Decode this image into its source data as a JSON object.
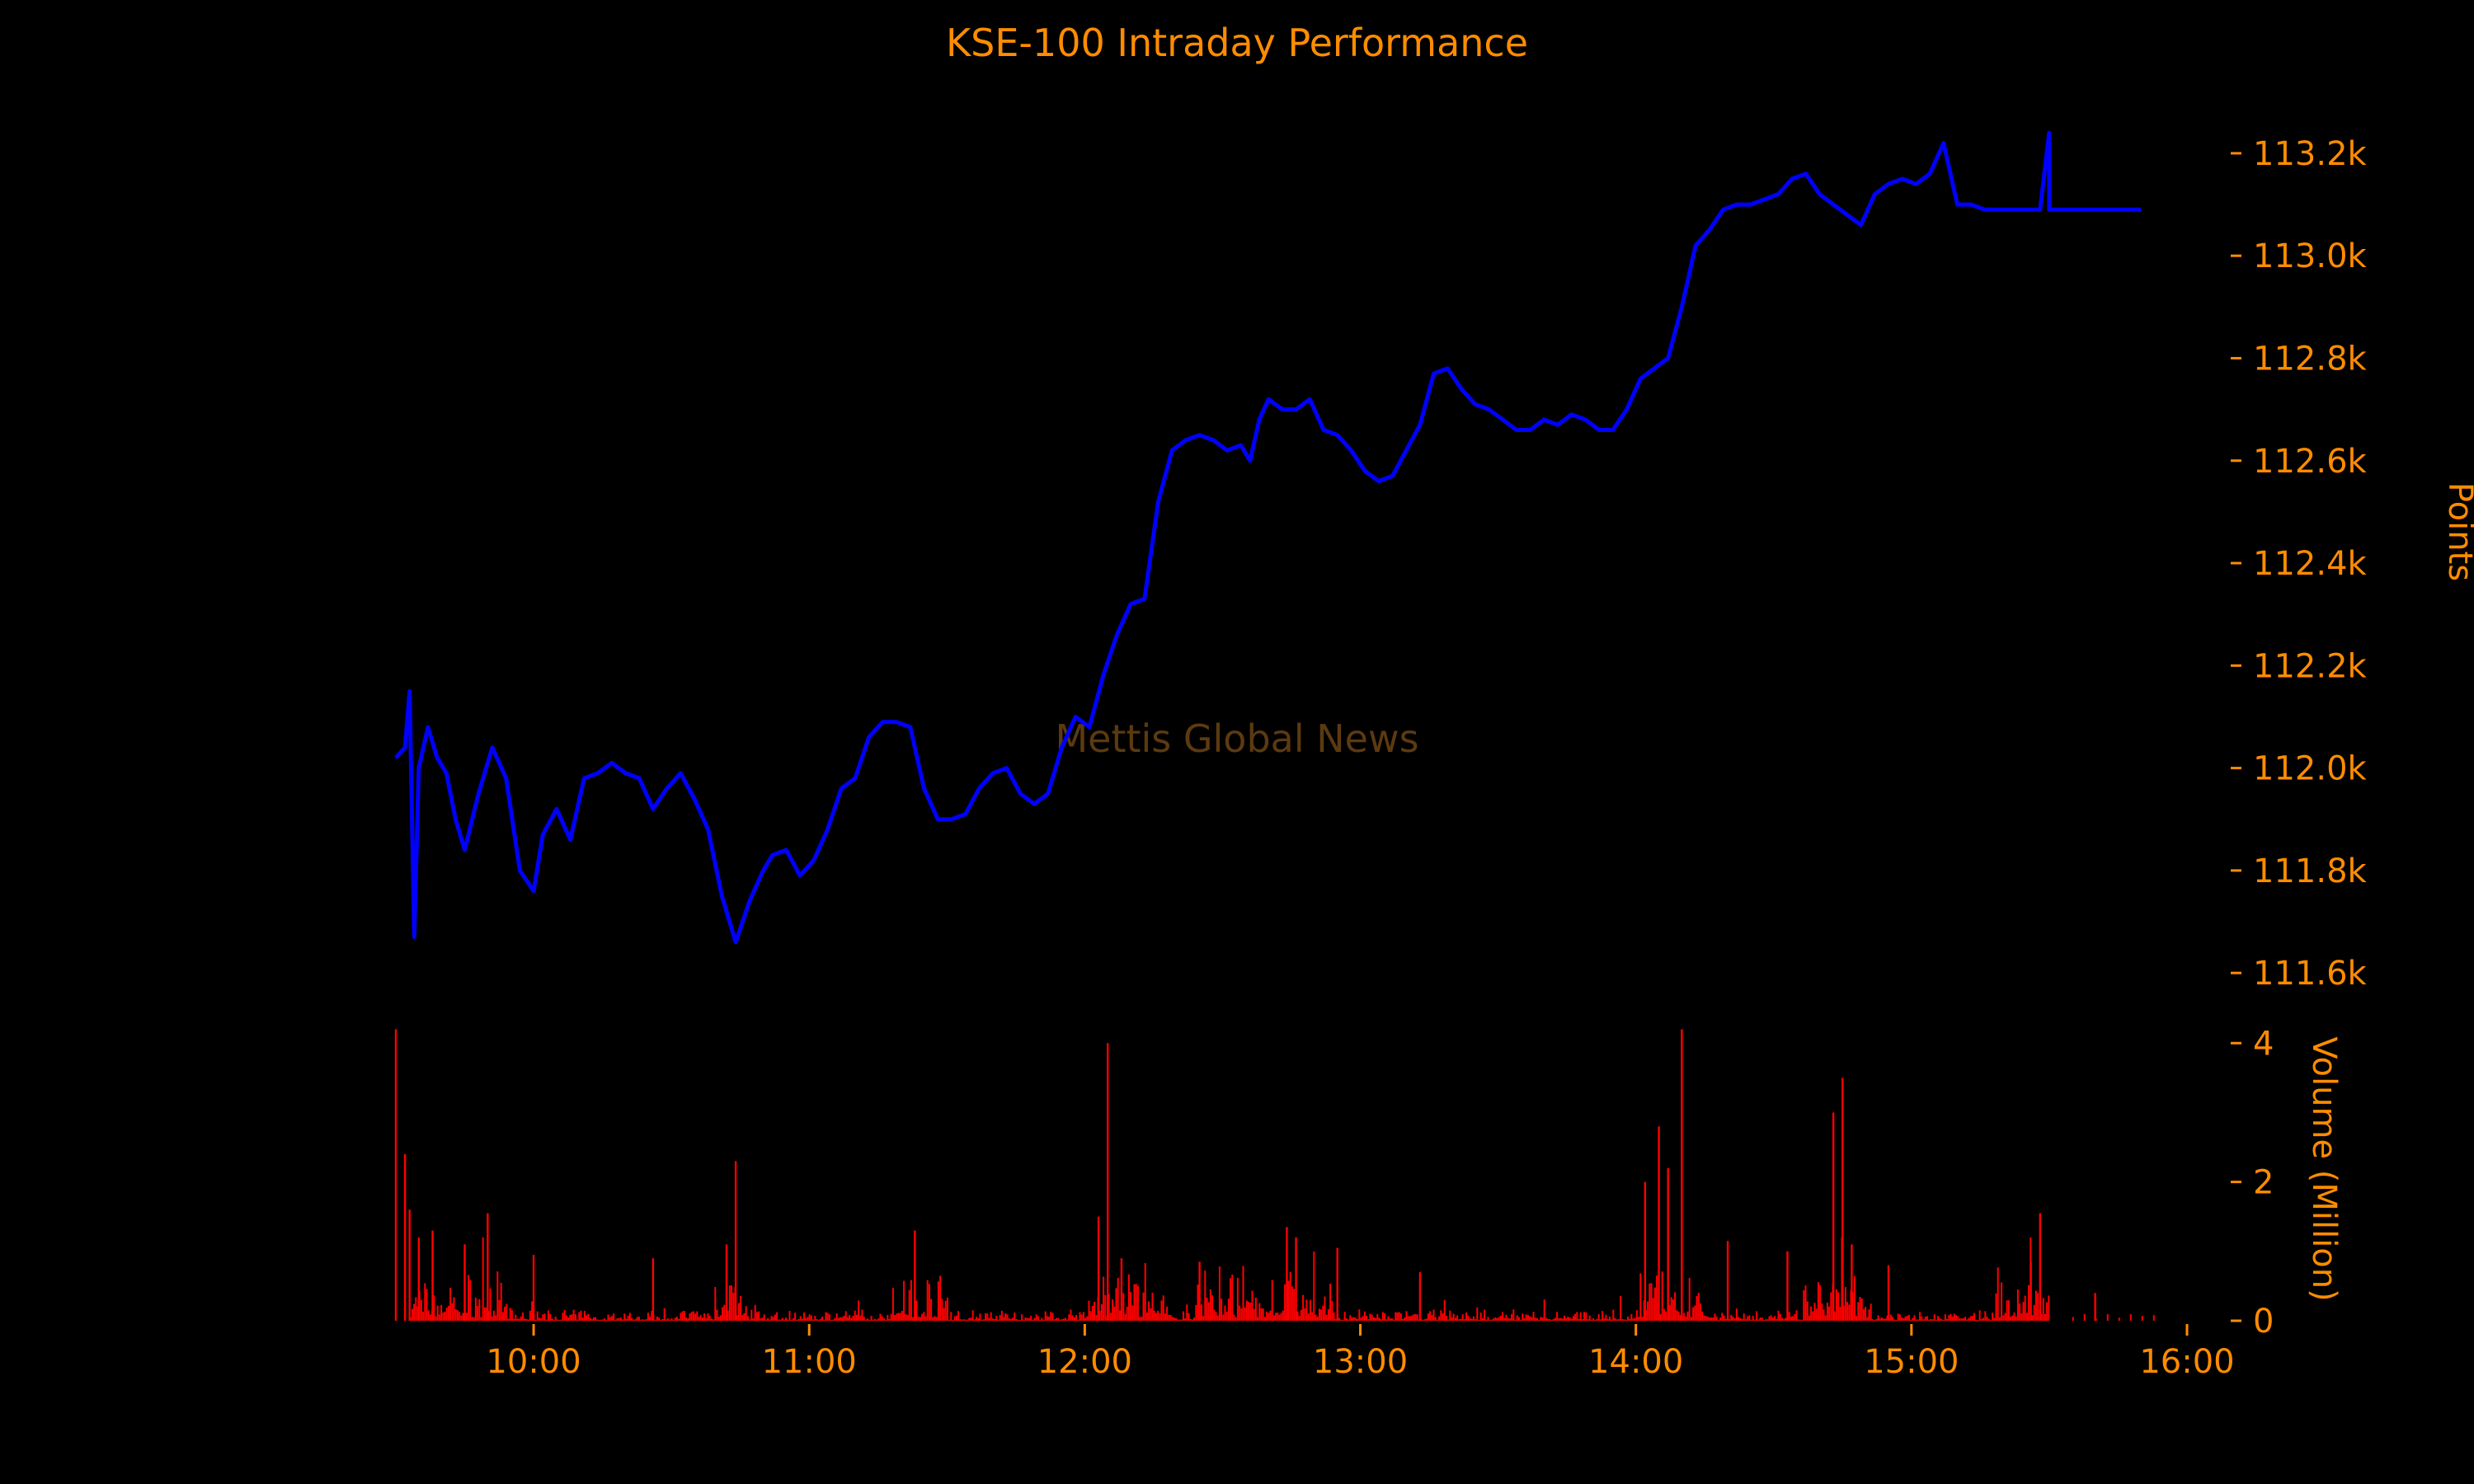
{
  "chart_data": {
    "title": "KSE-100 Intraday Performance",
    "watermark": "Mettis Global News",
    "colors": {
      "background": "#000000",
      "text": "#ff8c00",
      "price_line": "#0000ff",
      "volume_bars": "#ff0000",
      "watermark": "#5c3a10"
    },
    "price_panel": {
      "type": "line",
      "ylabel": "Points",
      "ylim": [
        111560,
        113290
      ],
      "yticks": [
        111600,
        111800,
        112000,
        112200,
        112400,
        112600,
        112800,
        113000,
        113200
      ],
      "ytick_labels": [
        "111.6k",
        "111.8k",
        "112.0k",
        "112.2k",
        "112.4k",
        "112.6k",
        "112.8k",
        "113.0k",
        "113.2k"
      ],
      "series": [
        {
          "x": [
            "09:30",
            "09:32",
            "09:33",
            "09:34",
            "09:35",
            "09:37",
            "09:39",
            "09:41",
            "09:43",
            "09:45",
            "09:48",
            "09:51",
            "09:54",
            "09:57",
            "10:00",
            "10:02",
            "10:05",
            "10:08",
            "10:11",
            "10:14",
            "10:17",
            "10:20",
            "10:23",
            "10:26",
            "10:29",
            "10:32",
            "10:35",
            "10:38",
            "10:41",
            "10:44",
            "10:47",
            "10:50",
            "10:52",
            "10:55",
            "10:58",
            "11:01",
            "11:04",
            "11:07",
            "11:10",
            "11:13",
            "11:16",
            "11:19",
            "11:22",
            "11:25",
            "11:28",
            "11:31",
            "11:34",
            "11:37",
            "11:40",
            "11:43",
            "11:46",
            "11:49",
            "11:52",
            "11:55",
            "11:58",
            "12:01",
            "12:04",
            "12:07",
            "12:10",
            "12:13",
            "12:16",
            "12:19",
            "12:22",
            "12:25",
            "12:28",
            "12:31",
            "12:34",
            "12:36",
            "12:37",
            "12:38",
            "12:40",
            "12:43",
            "12:46",
            "12:49",
            "12:52",
            "12:55",
            "12:58",
            "13:01",
            "13:04",
            "13:07",
            "13:10",
            "13:13",
            "13:16",
            "13:19",
            "13:22",
            "13:25",
            "13:28",
            "13:31",
            "13:34",
            "13:37",
            "13:40",
            "13:43",
            "13:46",
            "13:49",
            "13:52",
            "13:55",
            "13:58",
            "14:01",
            "14:04",
            "14:07",
            "14:10",
            "14:13",
            "14:16",
            "14:19",
            "14:22",
            "14:25",
            "14:28",
            "14:31",
            "14:34",
            "14:37",
            "14:40",
            "14:43",
            "14:46",
            "14:49",
            "14:52",
            "14:55",
            "14:58",
            "15:01",
            "15:04",
            "15:07",
            "15:10",
            "15:13",
            "15:16",
            "15:19",
            "15:22",
            "15:25",
            "15:28",
            "15:30",
            "15:30",
            "15:50"
          ],
          "y": [
            112020,
            112040,
            112150,
            111670,
            112000,
            112080,
            112020,
            111990,
            111900,
            111840,
            111950,
            112040,
            111980,
            111800,
            111760,
            111870,
            111920,
            111860,
            111980,
            111990,
            112010,
            111990,
            111980,
            111920,
            111960,
            111990,
            111940,
            111880,
            111750,
            111660,
            111740,
            111800,
            111830,
            111840,
            111790,
            111820,
            111880,
            111960,
            111980,
            112060,
            112090,
            112090,
            112080,
            111960,
            111900,
            111900,
            111910,
            111960,
            111990,
            112000,
            111950,
            111930,
            111950,
            112040,
            112100,
            112080,
            112180,
            112260,
            112320,
            112330,
            112520,
            112620,
            112640,
            112650,
            112640,
            112620,
            112630,
            112600,
            112640,
            112680,
            112720,
            112700,
            112700,
            112720,
            112660,
            112650,
            112620,
            112580,
            112560,
            112570,
            112620,
            112670,
            112770,
            112780,
            112740,
            112710,
            112700,
            112680,
            112660,
            112660,
            112680,
            112670,
            112690,
            112680,
            112660,
            112660,
            112700,
            112760,
            112780,
            112800,
            112900,
            113020,
            113050,
            113090,
            113100,
            113100,
            113110,
            113120,
            113150,
            113160,
            113120,
            113100,
            113080,
            113060,
            113120,
            113140,
            113150,
            113140,
            113160,
            113220,
            113100,
            113100,
            113090,
            113090,
            113090,
            113090,
            113090,
            113240,
            113090,
            113090
          ]
        }
      ]
    },
    "volume_panel": {
      "type": "bar",
      "ylabel": "Volume (Million)",
      "ylim": [
        0,
        4.3
      ],
      "yticks": [
        0,
        2,
        4
      ],
      "ytick_labels": [
        "0",
        "2",
        "4"
      ],
      "spikes": [
        {
          "t": "09:30",
          "v": 4.2
        },
        {
          "t": "09:32",
          "v": 2.4
        },
        {
          "t": "09:33",
          "v": 1.6
        },
        {
          "t": "09:35",
          "v": 1.2
        },
        {
          "t": "09:38",
          "v": 1.3
        },
        {
          "t": "09:45",
          "v": 1.1
        },
        {
          "t": "09:50",
          "v": 1.55
        },
        {
          "t": "10:00",
          "v": 0.95
        },
        {
          "t": "10:26",
          "v": 0.9
        },
        {
          "t": "10:42",
          "v": 1.1
        },
        {
          "t": "10:44",
          "v": 2.3
        },
        {
          "t": "11:23",
          "v": 1.3
        },
        {
          "t": "12:03",
          "v": 1.5
        },
        {
          "t": "12:05",
          "v": 4.0
        },
        {
          "t": "12:08",
          "v": 0.9
        },
        {
          "t": "12:25",
          "v": 0.85
        },
        {
          "t": "12:44",
          "v": 1.35
        },
        {
          "t": "12:46",
          "v": 1.2
        },
        {
          "t": "12:55",
          "v": 1.05
        },
        {
          "t": "13:13",
          "v": 0.7
        },
        {
          "t": "14:02",
          "v": 2.0
        },
        {
          "t": "14:05",
          "v": 2.8
        },
        {
          "t": "14:07",
          "v": 2.2
        },
        {
          "t": "14:10",
          "v": 4.2
        },
        {
          "t": "14:20",
          "v": 1.15
        },
        {
          "t": "14:33",
          "v": 1.0
        },
        {
          "t": "14:43",
          "v": 3.0
        },
        {
          "t": "14:45",
          "v": 3.5
        },
        {
          "t": "14:47",
          "v": 1.1
        },
        {
          "t": "14:55",
          "v": 0.8
        },
        {
          "t": "15:26",
          "v": 0.85
        },
        {
          "t": "15:28",
          "v": 1.55
        },
        {
          "t": "15:40",
          "v": 0.4
        }
      ]
    },
    "x_axis": {
      "range": [
        "09:30",
        "16:00"
      ],
      "ticks": [
        "10:00",
        "11:00",
        "12:00",
        "13:00",
        "14:00",
        "15:00",
        "16:00"
      ]
    }
  }
}
